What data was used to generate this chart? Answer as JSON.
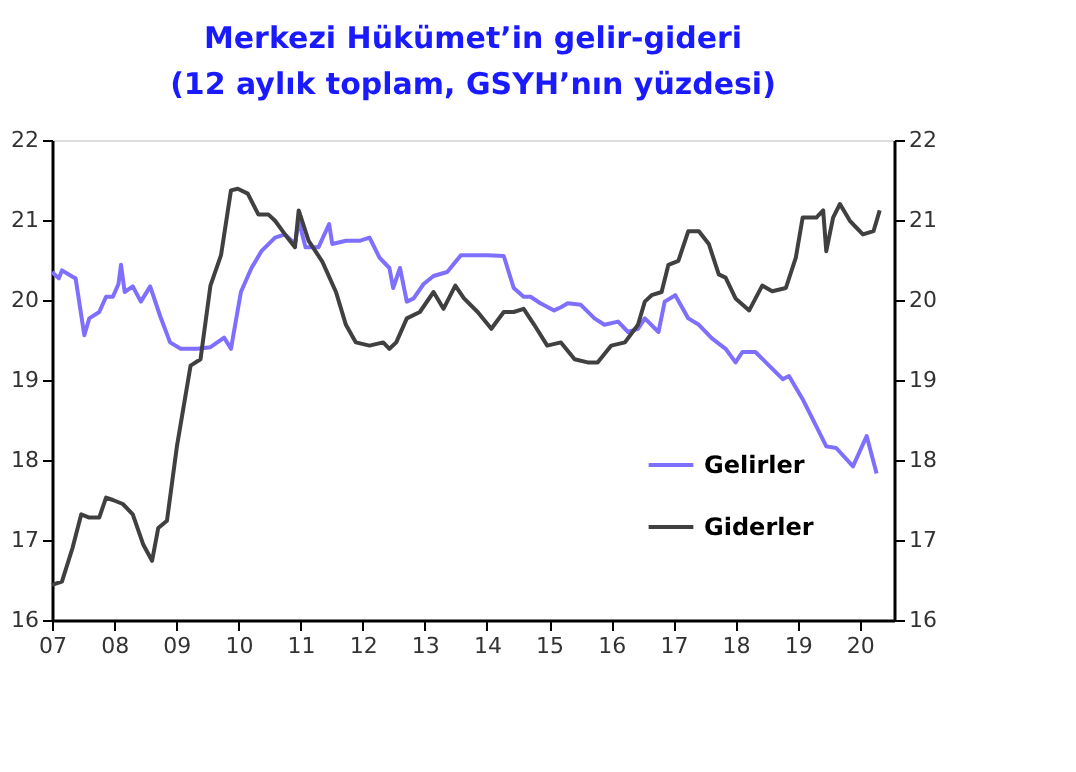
{
  "chart_data": {
    "type": "line",
    "title": "Merkezi Hükümet’in gelir-gideri",
    "subtitle": "(12 aylık toplam, GSYH’nın yüzdesi)",
    "xlim": [
      2007,
      2020.55
    ],
    "xticks": [
      {
        "value": 2007,
        "label": "07"
      },
      {
        "value": 2008,
        "label": "08"
      },
      {
        "value": 2009,
        "label": "09"
      },
      {
        "value": 2010,
        "label": "10"
      },
      {
        "value": 2011,
        "label": "11"
      },
      {
        "value": 2012,
        "label": "12"
      },
      {
        "value": 2013,
        "label": "13"
      },
      {
        "value": 2014,
        "label": "14"
      },
      {
        "value": 2015,
        "label": "15"
      },
      {
        "value": 2016,
        "label": "16"
      },
      {
        "value": 2017,
        "label": "17"
      },
      {
        "value": 2018,
        "label": "18"
      },
      {
        "value": 2019,
        "label": "19"
      },
      {
        "value": 2020,
        "label": "20"
      }
    ],
    "ylim": [
      16,
      22
    ],
    "yticks": [
      16,
      17,
      18,
      19,
      20,
      21,
      22
    ],
    "y2lim": [
      16,
      22
    ],
    "y2ticks": [
      16,
      17,
      18,
      19,
      20,
      21,
      22
    ],
    "grid": false,
    "legend": "bottom right",
    "line_style": "solid",
    "marker": "none",
    "series": [
      {
        "name": "Gelirler",
        "color": "#7f6fff",
        "x": [
          2007.0,
          2007.11,
          2007.16,
          2007.33,
          2007.38,
          2007.52,
          2007.6,
          2007.76,
          2007.87,
          2007.98,
          2008.07,
          2008.11,
          2008.17,
          2008.3,
          2008.43,
          2008.58,
          2008.74,
          2008.9,
          2009.07,
          2009.34,
          2009.55,
          2009.77,
          2009.88,
          2010.04,
          2010.21,
          2010.37,
          2010.59,
          2010.75,
          2010.91,
          2010.97,
          2011.08,
          2011.29,
          2011.46,
          2011.51,
          2011.73,
          2011.95,
          2012.11,
          2012.27,
          2012.43,
          2012.49,
          2012.6,
          2012.71,
          2012.82,
          2012.98,
          2013.14,
          2013.36,
          2013.58,
          2013.79,
          2014.01,
          2014.27,
          2014.43,
          2014.59,
          2014.7,
          2014.86,
          2015.08,
          2015.19,
          2015.3,
          2015.51,
          2015.73,
          2015.89,
          2016.11,
          2016.27,
          2016.43,
          2016.54,
          2016.76,
          2016.86,
          2017.03,
          2017.24,
          2017.41,
          2017.62,
          2017.84,
          2018.0,
          2018.11,
          2018.32,
          2018.54,
          2018.76,
          2018.86,
          2019.08,
          2019.3,
          2019.46,
          2019.62,
          2019.89,
          2020.11,
          2020.27
        ],
        "values": [
          20.35,
          20.27,
          20.37,
          20.29,
          20.27,
          19.56,
          19.77,
          19.85,
          20.04,
          20.04,
          20.2,
          20.44,
          20.1,
          20.17,
          19.98,
          20.17,
          19.8,
          19.47,
          19.39,
          19.39,
          19.41,
          19.53,
          19.39,
          20.1,
          20.4,
          20.61,
          20.78,
          20.82,
          20.7,
          20.99,
          20.66,
          20.66,
          20.95,
          20.7,
          20.74,
          20.74,
          20.78,
          20.53,
          20.4,
          20.15,
          20.4,
          19.98,
          20.02,
          20.2,
          20.3,
          20.35,
          20.56,
          20.56,
          20.56,
          20.55,
          20.15,
          20.04,
          20.04,
          19.96,
          19.87,
          19.91,
          19.96,
          19.94,
          19.77,
          19.69,
          19.73,
          19.6,
          19.64,
          19.77,
          19.6,
          19.98,
          20.06,
          19.77,
          19.69,
          19.52,
          19.39,
          19.22,
          19.35,
          19.35,
          19.18,
          19.01,
          19.05,
          18.76,
          18.42,
          18.17,
          18.15,
          17.92,
          18.3,
          17.83
        ]
      },
      {
        "name": "Giderler",
        "color": "#404040",
        "x": [
          2007.0,
          2007.16,
          2007.33,
          2007.47,
          2007.6,
          2007.76,
          2007.87,
          2007.98,
          2008.14,
          2008.3,
          2008.47,
          2008.61,
          2008.71,
          2008.85,
          2009.01,
          2009.23,
          2009.39,
          2009.55,
          2009.72,
          2009.88,
          2009.99,
          2010.15,
          2010.32,
          2010.48,
          2010.59,
          2010.75,
          2010.91,
          2010.97,
          2011.13,
          2011.35,
          2011.57,
          2011.73,
          2011.89,
          2012.11,
          2012.33,
          2012.43,
          2012.54,
          2012.71,
          2012.92,
          2013.14,
          2013.3,
          2013.49,
          2013.63,
          2013.85,
          2014.07,
          2014.27,
          2014.43,
          2014.59,
          2014.76,
          2014.97,
          2015.19,
          2015.41,
          2015.62,
          2015.78,
          2016.0,
          2016.22,
          2016.43,
          2016.54,
          2016.65,
          2016.81,
          2016.92,
          2017.08,
          2017.24,
          2017.41,
          2017.57,
          2017.73,
          2017.84,
          2018.0,
          2018.22,
          2018.43,
          2018.59,
          2018.81,
          2018.97,
          2019.08,
          2019.3,
          2019.41,
          2019.46,
          2019.57,
          2019.68,
          2019.84,
          2019.95,
          2020.05,
          2020.22,
          2020.32
        ],
        "values": [
          16.44,
          16.48,
          16.9,
          17.32,
          17.28,
          17.28,
          17.53,
          17.5,
          17.45,
          17.32,
          16.94,
          16.74,
          17.15,
          17.24,
          18.17,
          19.18,
          19.26,
          20.18,
          20.56,
          21.37,
          21.39,
          21.33,
          21.07,
          21.07,
          20.99,
          20.82,
          20.66,
          21.12,
          20.74,
          20.48,
          20.1,
          19.69,
          19.47,
          19.43,
          19.47,
          19.39,
          19.47,
          19.77,
          19.85,
          20.1,
          19.89,
          20.18,
          20.02,
          19.85,
          19.64,
          19.85,
          19.85,
          19.89,
          19.69,
          19.43,
          19.47,
          19.26,
          19.22,
          19.22,
          19.43,
          19.47,
          19.69,
          19.98,
          20.06,
          20.1,
          20.44,
          20.49,
          20.86,
          20.86,
          20.7,
          20.32,
          20.28,
          20.02,
          19.87,
          20.18,
          20.11,
          20.15,
          20.53,
          21.03,
          21.03,
          21.12,
          20.61,
          21.03,
          21.2,
          20.99,
          20.9,
          20.82,
          20.86,
          21.12
        ]
      }
    ]
  }
}
